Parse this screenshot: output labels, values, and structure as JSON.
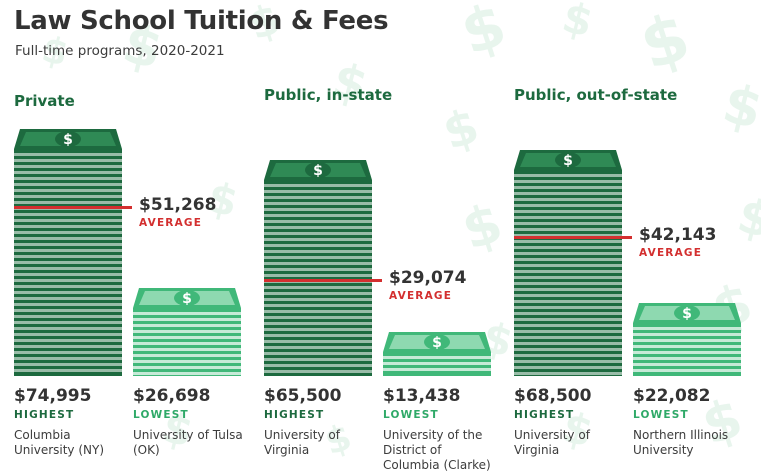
{
  "title": "Law School Tuition & Fees",
  "subtitle": "Full-time programs, 2020-2021",
  "colors": {
    "dark_green": "#1d6a3f",
    "dark_green_bill": "#2f8a55",
    "light_green": "#40b879",
    "light_green_bill": "#8ed9b0",
    "average_red": "#d32f2f"
  },
  "chart_data": [
    {
      "type": "bar",
      "title": "Private",
      "categories": [
        "HIGHEST",
        "LOWEST"
      ],
      "values": [
        74995,
        26698
      ],
      "value_labels": [
        "$74,995",
        "$26,698"
      ],
      "schools": [
        "Columbia University (NY)",
        "University of Tulsa (OK)"
      ],
      "average": 51268,
      "average_label": "$51,268",
      "average_caption": "AVERAGE"
    },
    {
      "type": "bar",
      "title": "Public, in-state",
      "categories": [
        "HIGHEST",
        "LOWEST"
      ],
      "values": [
        65500,
        13438
      ],
      "value_labels": [
        "$65,500",
        "$13,438"
      ],
      "schools": [
        "University of Virginia",
        "University of the District of Columbia (Clarke)"
      ],
      "average": 29074,
      "average_label": "$29,074",
      "average_caption": "AVERAGE"
    },
    {
      "type": "bar",
      "title": "Public, out-of-state",
      "categories": [
        "HIGHEST",
        "LOWEST"
      ],
      "values": [
        68500,
        22082
      ],
      "value_labels": [
        "$68,500",
        "$22,082"
      ],
      "schools": [
        "University of Virginia",
        "Northern Illinois University"
      ],
      "average": 42143,
      "average_label": "$42,143",
      "average_caption": "AVERAGE"
    }
  ]
}
